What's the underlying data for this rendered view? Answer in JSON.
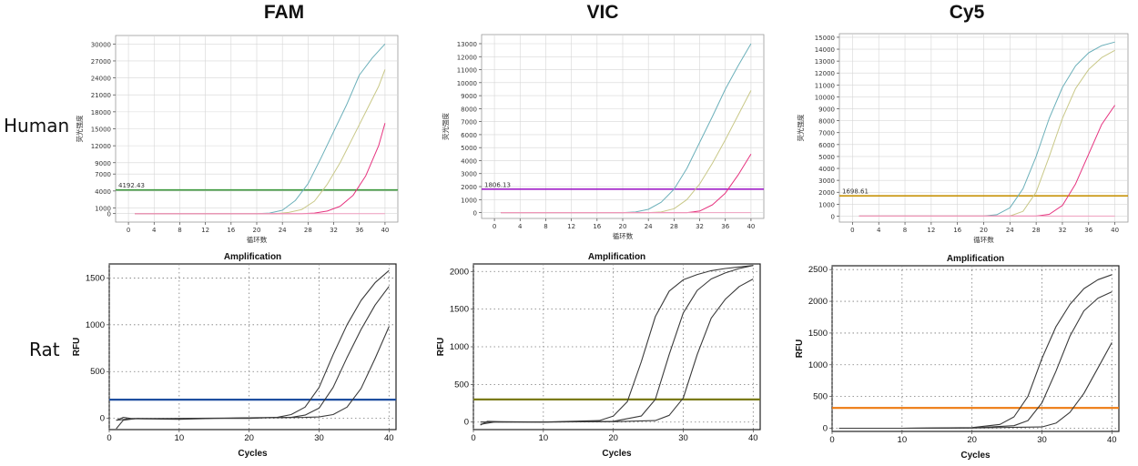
{
  "headers": {
    "fam": "FAM",
    "vic": "VIC",
    "cy5": "Cy5"
  },
  "rows": {
    "human": "Human",
    "rat": "Rat"
  },
  "chart_data": [
    {
      "id": "human-fam",
      "type": "line",
      "xlabel": "循环数",
      "ylabel": "荧光强度",
      "xticks": [
        0,
        4,
        8,
        12,
        16,
        20,
        24,
        28,
        32,
        36,
        40
      ],
      "yticks": [
        0,
        1000,
        4000,
        7000,
        9000,
        12000,
        15000,
        18000,
        21000,
        24000,
        27000,
        30000
      ],
      "xlim": [
        -2,
        42
      ],
      "ylim": [
        -1500,
        31500
      ],
      "threshold": {
        "value": 4192.43,
        "label": "4192.43",
        "color": "#3f9b3f"
      },
      "series": [
        {
          "color": "#6cb0ba",
          "x": [
            1,
            20,
            22,
            24,
            26,
            28,
            30,
            32,
            34,
            36,
            38,
            40
          ],
          "y": [
            0,
            0,
            100,
            600,
            2300,
            5300,
            9800,
            14500,
            19200,
            24500,
            27500,
            30000
          ]
        },
        {
          "color": "#c9c888",
          "x": [
            1,
            23,
            25,
            27,
            29,
            31,
            33,
            35,
            37,
            39,
            40
          ],
          "y": [
            0,
            0,
            200,
            700,
            2200,
            5200,
            9000,
            13500,
            18000,
            22500,
            25500
          ]
        },
        {
          "color": "#e6337f",
          "x": [
            1,
            27,
            29,
            31,
            33,
            35,
            37,
            39,
            40
          ],
          "y": [
            0,
            0,
            100,
            450,
            1300,
            3200,
            6700,
            12000,
            16000
          ]
        },
        {
          "color": "#f0a0c0",
          "x": [
            1,
            40
          ],
          "y": [
            0,
            0
          ]
        }
      ]
    },
    {
      "id": "human-vic",
      "type": "line",
      "xlabel": "循环数",
      "ylabel": "荧光强度",
      "xticks": [
        0,
        4,
        8,
        12,
        16,
        20,
        24,
        28,
        32,
        36,
        40
      ],
      "yticks": [
        0,
        1000,
        2000,
        3000,
        4000,
        5000,
        6000,
        7000,
        8000,
        9000,
        10000,
        11000,
        12000,
        13000
      ],
      "xlim": [
        -2,
        42
      ],
      "ylim": [
        -450,
        13700
      ],
      "threshold": {
        "value": 1806.13,
        "label": "1806.13",
        "color": "#a020c8"
      },
      "series": [
        {
          "color": "#6cb0ba",
          "x": [
            1,
            20,
            22,
            24,
            26,
            28,
            30,
            32,
            34,
            36,
            38,
            40
          ],
          "y": [
            0,
            0,
            50,
            250,
            800,
            1800,
            3400,
            5400,
            7400,
            9500,
            11300,
            13000
          ]
        },
        {
          "color": "#c9c888",
          "x": [
            1,
            24,
            26,
            28,
            30,
            32,
            34,
            36,
            38,
            40
          ],
          "y": [
            0,
            0,
            50,
            300,
            1000,
            2200,
            3800,
            5600,
            7500,
            9400
          ]
        },
        {
          "color": "#e6337f",
          "x": [
            1,
            30,
            32,
            34,
            36,
            38,
            40
          ],
          "y": [
            0,
            0,
            120,
            600,
            1500,
            2900,
            4500
          ]
        },
        {
          "color": "#f0a0c0",
          "x": [
            1,
            40
          ],
          "y": [
            0,
            0
          ]
        }
      ]
    },
    {
      "id": "human-cy5",
      "type": "line",
      "xlabel": "循环数",
      "ylabel": "荧光强度",
      "xticks": [
        0,
        4,
        8,
        12,
        16,
        20,
        24,
        28,
        32,
        36,
        40
      ],
      "yticks": [
        0,
        1000,
        2000,
        3000,
        4000,
        5000,
        6000,
        7000,
        8000,
        9000,
        10000,
        11000,
        12000,
        13000,
        14000,
        15000
      ],
      "xlim": [
        -2,
        42
      ],
      "ylim": [
        -500,
        15300
      ],
      "threshold": {
        "value": 1698.61,
        "label": "1698.61",
        "color": "#c8940a"
      },
      "series": [
        {
          "color": "#6cb0ba",
          "x": [
            1,
            20,
            22,
            24,
            26,
            28,
            30,
            32,
            34,
            36,
            38,
            40
          ],
          "y": [
            0,
            0,
            120,
            700,
            2300,
            5000,
            8200,
            10800,
            12600,
            13700,
            14300,
            14600
          ]
        },
        {
          "color": "#c9c888",
          "x": [
            1,
            24,
            26,
            28,
            30,
            32,
            34,
            36,
            38,
            40
          ],
          "y": [
            0,
            0,
            400,
            2000,
            5000,
            8200,
            10700,
            12300,
            13300,
            13900
          ]
        },
        {
          "color": "#e6337f",
          "x": [
            1,
            28,
            30,
            32,
            34,
            36,
            38,
            40
          ],
          "y": [
            0,
            0,
            150,
            900,
            2700,
            5200,
            7700,
            9300
          ]
        },
        {
          "color": "#f0a0c0",
          "x": [
            1,
            40
          ],
          "y": [
            0,
            0
          ]
        }
      ]
    },
    {
      "id": "rat-fam",
      "type": "line",
      "title": "Amplification",
      "xlabel": "Cycles",
      "ylabel": "RFU",
      "xticks": [
        0,
        10,
        20,
        30,
        40
      ],
      "yticks": [
        0,
        500,
        1000,
        1500
      ],
      "xlim": [
        0,
        41
      ],
      "ylim": [
        -120,
        1650
      ],
      "threshold": {
        "value": 200,
        "color": "#1f4fa0"
      },
      "series": [
        {
          "color": "#3a3a3a",
          "x": [
            1,
            2,
            3,
            5,
            10,
            15,
            20,
            24,
            26,
            28,
            30,
            32,
            34,
            36,
            38,
            40
          ],
          "y": [
            -20,
            10,
            0,
            -5,
            -10,
            0,
            0,
            10,
            40,
            120,
            330,
            680,
            1000,
            1260,
            1450,
            1580
          ]
        },
        {
          "color": "#3a3a3a",
          "x": [
            1,
            2,
            4,
            10,
            20,
            26,
            28,
            30,
            32,
            34,
            36,
            38,
            40
          ],
          "y": [
            -110,
            -20,
            0,
            -5,
            5,
            10,
            35,
            110,
            330,
            650,
            950,
            1210,
            1410
          ]
        },
        {
          "color": "#3a3a3a",
          "x": [
            1,
            3,
            10,
            20,
            28,
            30,
            32,
            34,
            36,
            38,
            40
          ],
          "y": [
            -20,
            -5,
            0,
            5,
            10,
            15,
            40,
            120,
            320,
            640,
            980
          ]
        }
      ]
    },
    {
      "id": "rat-vic",
      "type": "line",
      "title": "Amplification",
      "xlabel": "Cycles",
      "ylabel": "RFU",
      "xticks": [
        0,
        10,
        20,
        30,
        40
      ],
      "yticks": [
        0,
        500,
        1000,
        1500,
        2000
      ],
      "xlim": [
        0,
        41
      ],
      "ylim": [
        -100,
        2100
      ],
      "threshold": {
        "value": 300,
        "color": "#7a7a14"
      },
      "series": [
        {
          "color": "#3a3a3a",
          "x": [
            1,
            2,
            4,
            10,
            18,
            20,
            22,
            24,
            26,
            28,
            30,
            32,
            34,
            36,
            38,
            40
          ],
          "y": [
            -40,
            10,
            5,
            0,
            20,
            80,
            270,
            800,
            1400,
            1740,
            1890,
            1960,
            2010,
            2040,
            2060,
            2080
          ]
        },
        {
          "color": "#3a3a3a",
          "x": [
            1,
            3,
            10,
            20,
            24,
            26,
            28,
            30,
            32,
            34,
            36,
            38,
            40
          ],
          "y": [
            0,
            0,
            0,
            10,
            80,
            300,
            900,
            1450,
            1750,
            1900,
            1980,
            2040,
            2080
          ]
        },
        {
          "color": "#3a3a3a",
          "x": [
            1,
            3,
            10,
            20,
            26,
            28,
            30,
            32,
            34,
            36,
            38,
            40
          ],
          "y": [
            -30,
            0,
            0,
            5,
            20,
            90,
            320,
            900,
            1380,
            1630,
            1800,
            1900
          ]
        }
      ]
    },
    {
      "id": "rat-cy5",
      "type": "line",
      "title": "Amplification",
      "xlabel": "Cycles",
      "ylabel": "RFU",
      "xticks": [
        0,
        10,
        20,
        30,
        40
      ],
      "yticks": [
        0,
        500,
        1000,
        1500,
        2000,
        2500
      ],
      "xlim": [
        0,
        41
      ],
      "ylim": [
        -50,
        2560
      ],
      "threshold": {
        "value": 320,
        "color": "#ee7a10"
      },
      "series": [
        {
          "color": "#3a3a3a",
          "x": [
            1,
            10,
            20,
            24,
            26,
            28,
            30,
            32,
            34,
            36,
            38,
            40
          ],
          "y": [
            0,
            0,
            10,
            60,
            180,
            500,
            1100,
            1600,
            1950,
            2200,
            2340,
            2420
          ]
        },
        {
          "color": "#3a3a3a",
          "x": [
            1,
            10,
            20,
            26,
            28,
            30,
            32,
            34,
            36,
            38,
            40
          ],
          "y": [
            0,
            0,
            5,
            40,
            120,
            400,
            900,
            1450,
            1850,
            2050,
            2150
          ]
        },
        {
          "color": "#3a3a3a",
          "x": [
            1,
            10,
            20,
            30,
            32,
            34,
            36,
            38,
            40
          ],
          "y": [
            0,
            0,
            5,
            20,
            80,
            250,
            550,
            950,
            1350
          ]
        }
      ]
    }
  ]
}
